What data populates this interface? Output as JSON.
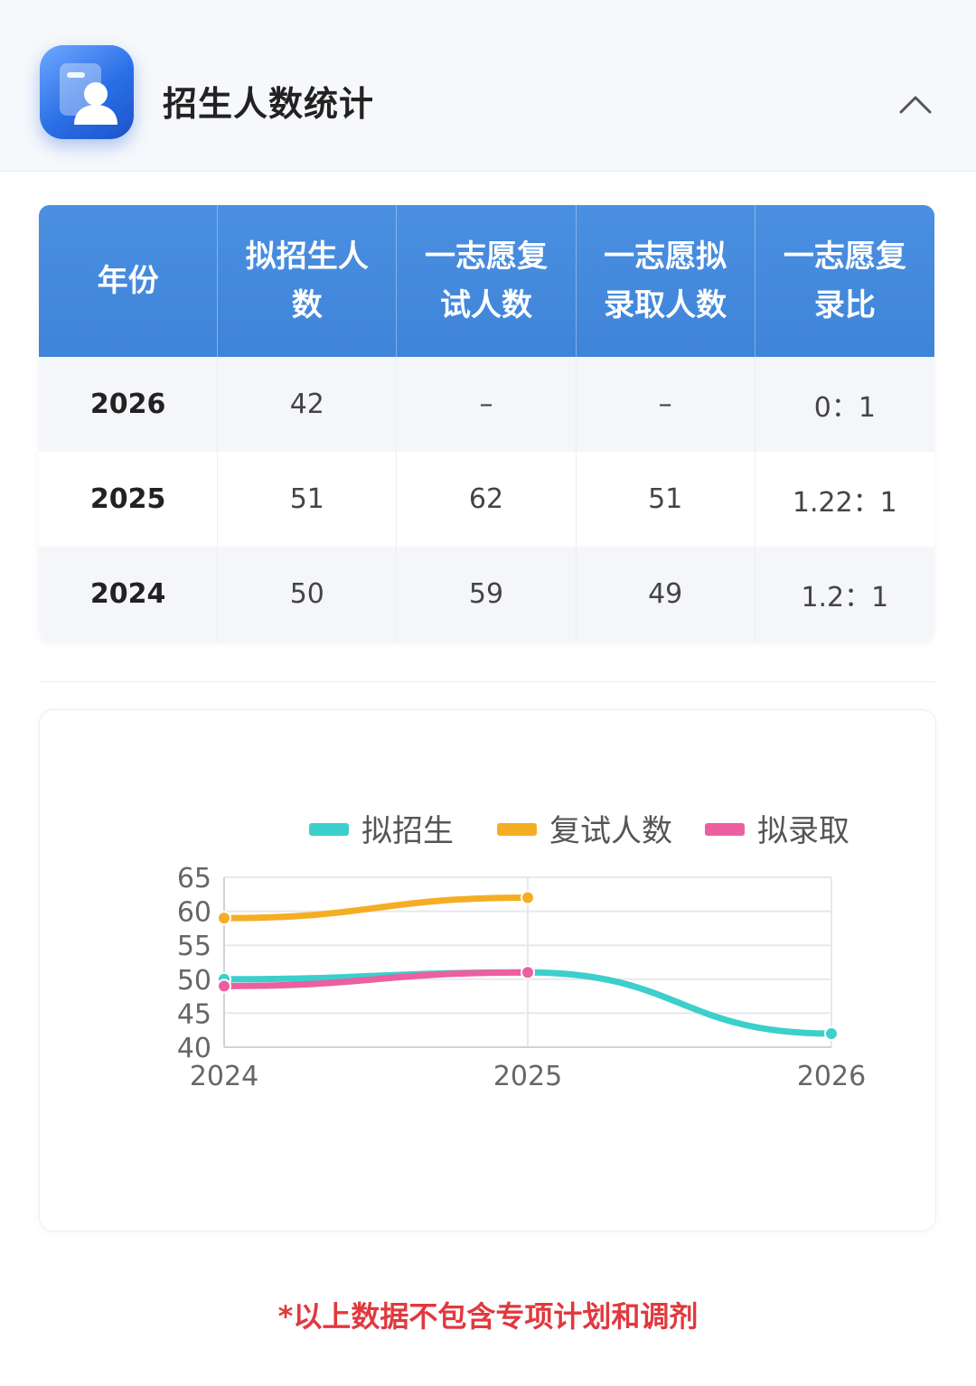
{
  "header": {
    "title": "招生人数统计",
    "icon": "profile-card-icon",
    "collapse_icon": "chevron-up-icon"
  },
  "table": {
    "columns": [
      "年份",
      "拟招生人数",
      "一志愿复试人数",
      "一志愿拟录取人数",
      "一志愿复录比"
    ],
    "column_lines": [
      [
        "年份"
      ],
      [
        "拟招生人",
        "数"
      ],
      [
        "一志愿复",
        "试人数"
      ],
      [
        "一志愿拟",
        "录取人数"
      ],
      [
        "一志愿复",
        "录比"
      ]
    ],
    "rows": [
      [
        "2026",
        "42",
        "–",
        "–",
        "0：1"
      ],
      [
        "2025",
        "51",
        "62",
        "51",
        "1.22：1"
      ],
      [
        "2024",
        "50",
        "59",
        "49",
        "1.2：1"
      ]
    ]
  },
  "chart_data": {
    "type": "line",
    "title": "",
    "xlabel": "",
    "ylabel": "",
    "categories": [
      "2024",
      "2025",
      "2026"
    ],
    "ylim": [
      40,
      65
    ],
    "yticks": [
      40,
      45,
      50,
      55,
      60,
      65
    ],
    "grid": true,
    "legend_position": "top",
    "series": [
      {
        "name": "拟招生",
        "color": "#3ccfcb",
        "values": [
          50,
          51,
          42
        ]
      },
      {
        "name": "复试人数",
        "color": "#f4ae24",
        "values": [
          59,
          62,
          null
        ]
      },
      {
        "name": "拟录取",
        "color": "#ec5fa0",
        "values": [
          49,
          51,
          null
        ]
      }
    ]
  },
  "footnote": "*以上数据不包含专项计划和调剂"
}
